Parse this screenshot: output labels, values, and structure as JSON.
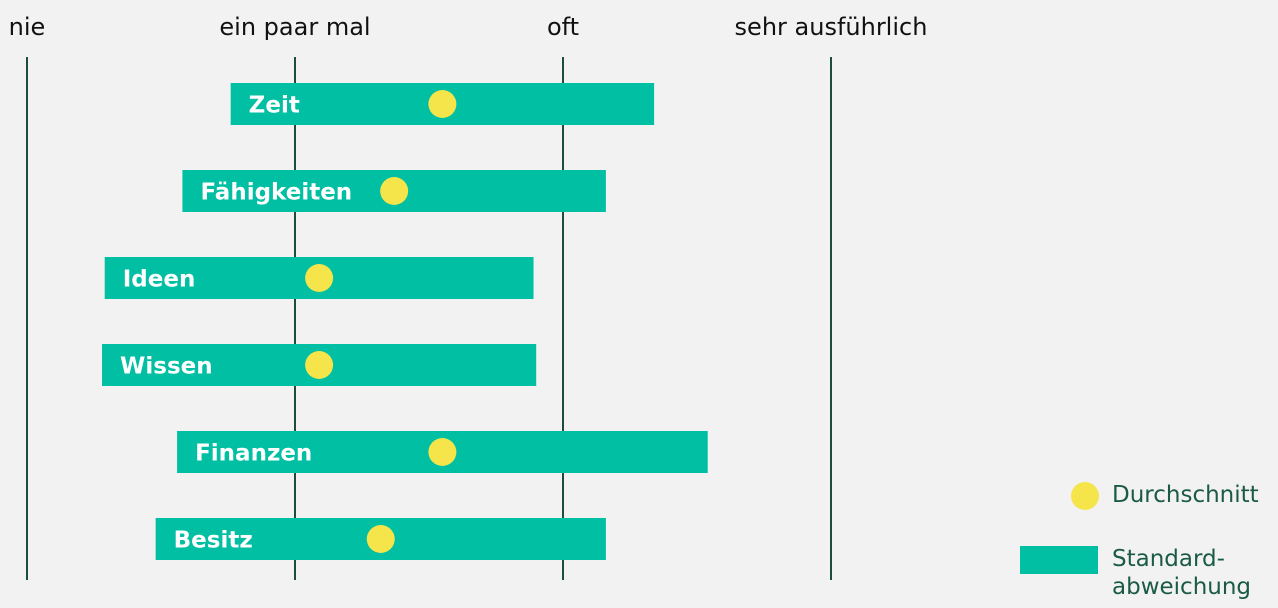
{
  "chart_data": {
    "type": "range-dot",
    "categories": [
      "Zeit",
      "Fähigkeiten",
      "Ideen",
      "Wissen",
      "Finanzen",
      "Besitz"
    ],
    "series": [
      {
        "name": "Durchschnitt",
        "color": "#f5e44a",
        "values": [
          1.55,
          1.37,
          1.09,
          1.09,
          1.55,
          1.32
        ]
      },
      {
        "name": "Standard-abweichung",
        "color": "#00bfa3",
        "values": [
          0.79,
          0.79,
          0.8,
          0.81,
          0.99,
          0.84
        ]
      }
    ],
    "xlim": [
      0,
      3
    ],
    "xticks": [
      {
        "value": 0,
        "label": "nie"
      },
      {
        "value": 1,
        "label": "ein paar mal"
      },
      {
        "value": 2,
        "label": "oft"
      },
      {
        "value": 3,
        "label": "sehr ausführlich"
      }
    ],
    "grid": true
  }
}
